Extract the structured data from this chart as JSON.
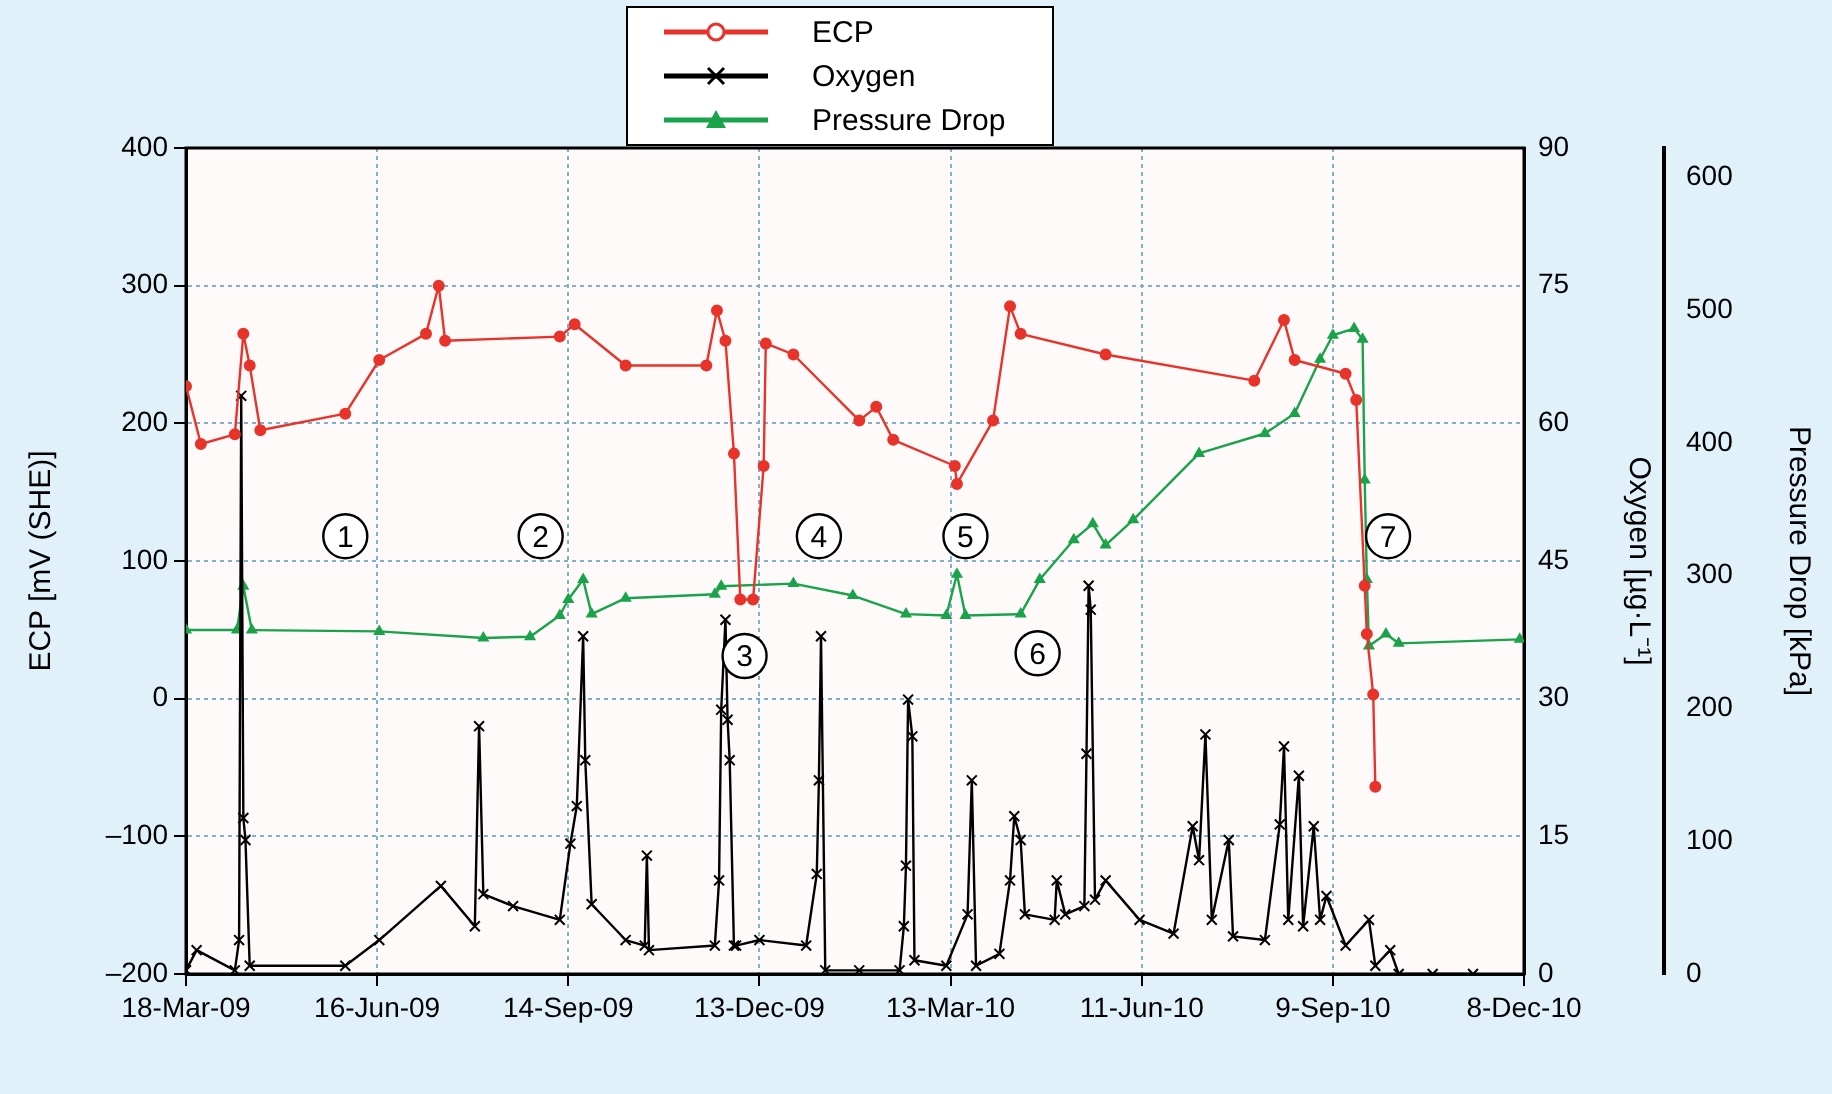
{
  "chart_data": {
    "type": "line",
    "ylabel": "ECP [mV (SHE)]",
    "y2label": "Oxygen [µg·L⁻¹]",
    "y3label": "Pressure Drop [kPa]",
    "xlim": [
      "2009-03-18",
      "2010-12-08"
    ],
    "xticks": [
      {
        "value": "2009-03-18",
        "label": "18-Mar-09"
      },
      {
        "value": "2009-06-16",
        "label": "16-Jun-09"
      },
      {
        "value": "2009-09-14",
        "label": "14-Sep-09"
      },
      {
        "value": "2009-12-13",
        "label": "13-Dec-09"
      },
      {
        "value": "2010-03-13",
        "label": "13-Mar-10"
      },
      {
        "value": "2010-06-11",
        "label": "11-Jun-10"
      },
      {
        "value": "2010-09-09",
        "label": "9-Sep-10"
      },
      {
        "value": "2010-12-08",
        "label": "8-Dec-10"
      }
    ],
    "ylim": [
      -200,
      400
    ],
    "yticks": [
      {
        "value": -200,
        "label": "–200"
      },
      {
        "value": -100,
        "label": "–100"
      },
      0,
      100,
      200,
      300,
      400
    ],
    "y2lim": [
      0,
      90
    ],
    "y2ticks": [
      0,
      15,
      30,
      45,
      60,
      75,
      90
    ],
    "y3lim": [
      0,
      622
    ],
    "y3ticks": [
      0,
      100,
      200,
      300,
      400,
      500,
      600
    ],
    "grid": true,
    "legend": "top",
    "series": [
      {
        "name": "ECP",
        "color": "#e8332a",
        "marker": "circle",
        "x": [
          "2009-03-18",
          "2009-03-25",
          "2009-04-10",
          "2009-04-14",
          "2009-04-17",
          "2009-04-22",
          "2009-06-01",
          "2009-06-17",
          "2009-07-09",
          "2009-07-15",
          "2009-07-18",
          "2009-09-10",
          "2009-09-17",
          "2009-10-11",
          "2009-11-18",
          "2009-11-23",
          "2009-11-27",
          "2009-12-01",
          "2009-12-04",
          "2009-12-10",
          "2009-12-15",
          "2009-12-16",
          "2009-12-29",
          "2010-01-29",
          "2010-02-06",
          "2010-02-14",
          "2010-03-15",
          "2010-03-16",
          "2010-04-02",
          "2010-04-10",
          "2010-04-15",
          "2010-05-25",
          "2010-08-03",
          "2010-08-17",
          "2010-08-22",
          "2010-09-15",
          "2010-09-20",
          "2010-09-24",
          "2010-09-25",
          "2010-09-28",
          "2010-09-29"
        ],
        "values": [
          227,
          185,
          192,
          265,
          242,
          195,
          207,
          246,
          265,
          300,
          260,
          263,
          272,
          242,
          242,
          282,
          260,
          178,
          72,
          72,
          169,
          258,
          250,
          202,
          212,
          188,
          169,
          156,
          202,
          285,
          265,
          250,
          231,
          275,
          246,
          236,
          217,
          82,
          47,
          3,
          -64
        ]
      },
      {
        "name": "Oxygen",
        "color": "#000000",
        "marker": "cross",
        "axis": "y2",
        "x": [
          "2009-03-18",
          "2009-03-23",
          "2009-04-10",
          "2009-04-12",
          "2009-04-13",
          "2009-04-14",
          "2009-04-15",
          "2009-04-17",
          "2009-06-01",
          "2009-06-17",
          "2009-07-16",
          "2009-08-01",
          "2009-08-03",
          "2009-08-05",
          "2009-08-19",
          "2009-09-10",
          "2009-09-15",
          "2009-09-18",
          "2009-09-21",
          "2009-09-22",
          "2009-09-25",
          "2009-10-11",
          "2009-10-20",
          "2009-10-21",
          "2009-10-22",
          "2009-11-22",
          "2009-11-24",
          "2009-11-25",
          "2009-11-27",
          "2009-11-28",
          "2009-11-29",
          "2009-12-01",
          "2009-12-02",
          "2009-12-13",
          "2010-01-04",
          "2010-01-09",
          "2010-01-10",
          "2010-01-11",
          "2010-01-13",
          "2010-01-29",
          "2010-02-17",
          "2010-02-19",
          "2010-02-20",
          "2010-02-21",
          "2010-02-23",
          "2010-02-24",
          "2010-03-11",
          "2010-03-21",
          "2010-03-23",
          "2010-03-25",
          "2010-04-05",
          "2010-04-10",
          "2010-04-12",
          "2010-04-15",
          "2010-04-17",
          "2010-05-01",
          "2010-05-02",
          "2010-05-06",
          "2010-05-15",
          "2010-05-16",
          "2010-05-17",
          "2010-05-18",
          "2010-05-20",
          "2010-05-25",
          "2010-06-10",
          "2010-06-26",
          "2010-07-05",
          "2010-07-08",
          "2010-07-11",
          "2010-07-14",
          "2010-07-22",
          "2010-07-24",
          "2010-08-08",
          "2010-08-15",
          "2010-08-17",
          "2010-08-19",
          "2010-08-24",
          "2010-08-26",
          "2010-08-31",
          "2010-09-03",
          "2010-09-06",
          "2010-09-15",
          "2010-09-26",
          "2010-09-29",
          "2010-10-06",
          "2010-10-10",
          "2010-10-26",
          "2010-11-14"
        ],
        "values": [
          0.4,
          2.6,
          0.4,
          3.7,
          63,
          17,
          14.6,
          0.9,
          0.9,
          3.7,
          9.6,
          5.2,
          27,
          8.7,
          7.4,
          5.9,
          14.2,
          18.3,
          36.8,
          23.3,
          7.6,
          3.7,
          3.1,
          12.9,
          2.6,
          3.1,
          10.2,
          28.8,
          38.6,
          27.7,
          23.3,
          3.1,
          3.1,
          3.7,
          3.1,
          10.9,
          21.1,
          36.8,
          0.4,
          0.4,
          0.4,
          5.2,
          11.8,
          29.9,
          25.9,
          1.5,
          0.9,
          6.5,
          21.1,
          0.9,
          2.2,
          10.2,
          17.2,
          14.6,
          6.5,
          5.9,
          10.2,
          6.5,
          7.4,
          24,
          42.3,
          39.7,
          8.1,
          10.2,
          5.9,
          4.4,
          16.1,
          12.4,
          26.1,
          5.9,
          14.6,
          4.1,
          3.7,
          16.3,
          24.8,
          5.9,
          21.6,
          5.2,
          16.1,
          5.9,
          8.5,
          3.1,
          5.9,
          0.9,
          2.6,
          0,
          0,
          0
        ]
      },
      {
        "name": "Pressure Drop",
        "color": "#1aa34a",
        "marker": "triangle",
        "axis": "y3",
        "x": [
          "2009-03-18",
          "2009-04-11",
          "2009-04-14",
          "2009-04-18",
          "2009-06-17",
          "2009-08-05",
          "2009-08-27",
          "2009-09-10",
          "2009-09-14",
          "2009-09-21",
          "2009-09-25",
          "2009-10-11",
          "2009-11-22",
          "2009-11-25",
          "2009-12-29",
          "2010-01-26",
          "2010-02-20",
          "2010-03-11",
          "2010-03-16",
          "2010-03-20",
          "2010-04-15",
          "2010-04-24",
          "2010-05-10",
          "2010-05-19",
          "2010-05-25",
          "2010-06-07",
          "2010-07-08",
          "2010-08-08",
          "2010-08-22",
          "2010-09-03",
          "2010-09-09",
          "2010-09-19",
          "2010-09-23",
          "2010-09-24",
          "2010-09-25",
          "2010-09-26",
          "2010-10-04",
          "2010-10-10",
          "2010-12-06"
        ],
        "values": [
          259,
          259,
          292,
          259,
          258,
          253,
          254,
          270,
          282,
          297,
          271,
          283,
          286,
          292,
          294,
          285,
          271,
          270,
          301,
          270,
          271,
          297,
          327,
          339,
          323,
          342,
          392,
          407,
          422,
          463,
          481,
          486,
          478,
          372,
          297,
          247,
          256,
          249,
          252
        ]
      }
    ],
    "annotations": [
      {
        "text": "1",
        "x": "2009-06-01",
        "y": 118
      },
      {
        "text": "2",
        "x": "2009-09-01",
        "y": 118
      },
      {
        "text": "3",
        "x": "2009-12-06",
        "y": 31
      },
      {
        "text": "4",
        "x": "2010-01-10",
        "y": 118
      },
      {
        "text": "5",
        "x": "2010-03-20",
        "y": 118
      },
      {
        "text": "6",
        "x": "2010-04-23",
        "y": 33
      },
      {
        "text": "7",
        "x": "2010-10-05",
        "y": 118
      }
    ]
  }
}
